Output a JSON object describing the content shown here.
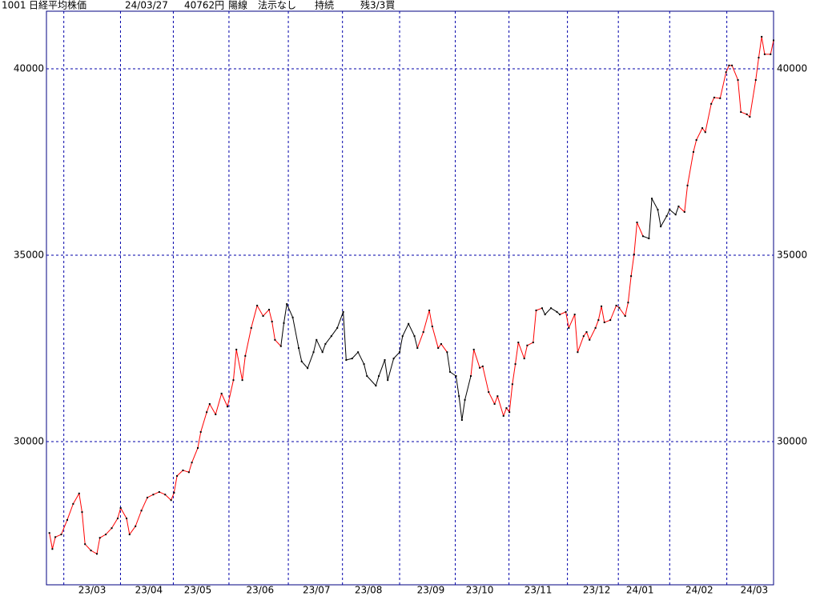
{
  "chart_data": {
    "type": "line",
    "header": [
      "1001",
      "日経平均株価",
      "24/03/27",
      "40762円",
      "陽線",
      "法示なし",
      "持続",
      "残3/3買"
    ],
    "x": [
      1,
      2,
      3,
      5,
      7,
      9,
      11,
      12,
      13,
      15,
      17,
      18,
      20,
      22,
      24,
      25,
      27,
      28,
      30,
      32,
      34,
      36,
      38,
      40,
      42,
      43,
      44,
      46,
      48,
      49,
      51,
      52,
      54,
      55,
      57,
      59,
      61,
      63,
      64,
      66,
      67,
      69,
      71,
      73,
      75,
      76,
      77,
      79,
      80,
      81,
      83,
      85,
      86,
      88,
      90,
      91,
      93,
      94,
      96,
      98,
      100,
      101,
      103,
      105,
      107,
      108,
      111,
      112,
      114,
      115,
      117,
      119,
      120,
      122,
      124,
      125,
      127,
      129,
      130,
      132,
      133,
      135,
      136,
      138,
      139,
      140,
      141,
      143,
      144,
      146,
      147,
      149,
      151,
      152,
      154,
      155,
      156,
      157,
      158,
      159,
      161,
      162,
      164,
      165,
      167,
      168,
      170,
      172,
      173,
      175,
      176,
      178,
      179,
      181,
      182,
      183,
      185,
      186,
      187,
      188,
      190,
      192,
      193,
      195,
      196,
      197,
      198,
      199,
      201,
      203,
      204,
      206,
      207,
      209,
      210,
      212,
      213,
      215,
      216,
      218,
      219,
      221,
      222,
      224,
      225,
      227,
      229,
      230,
      231,
      233,
      234,
      236,
      237,
      239,
      240,
      241,
      242,
      244,
      245
    ],
    "values": [
      27550,
      27120,
      27440,
      27510,
      27900,
      28330,
      28610,
      28110,
      27250,
      27080,
      26990,
      27420,
      27510,
      27680,
      27940,
      28220,
      27940,
      27510,
      27730,
      28150,
      28500,
      28580,
      28650,
      28580,
      28430,
      28630,
      29080,
      29230,
      29180,
      29440,
      29830,
      30260,
      30790,
      31010,
      30730,
      31290,
      30940,
      31650,
      32470,
      31650,
      32300,
      33050,
      33650,
      33370,
      33540,
      33220,
      32730,
      32560,
      33180,
      33690,
      33330,
      32510,
      32150,
      31970,
      32400,
      32730,
      32400,
      32620,
      32830,
      33050,
      33480,
      32190,
      32230,
      32400,
      32080,
      31760,
      31500,
      31760,
      32190,
      31650,
      32230,
      32400,
      32830,
      33160,
      32830,
      32510,
      32940,
      33520,
      33090,
      32510,
      32620,
      32400,
      31870,
      31760,
      31220,
      30580,
      31120,
      31760,
      32470,
      31980,
      32020,
      31330,
      31010,
      31220,
      30690,
      30900,
      30790,
      31540,
      32080,
      32660,
      32230,
      32580,
      32660,
      33520,
      33580,
      33410,
      33580,
      33480,
      33410,
      33480,
      33050,
      33410,
      32400,
      32830,
      32940,
      32730,
      33050,
      33260,
      33630,
      33200,
      33260,
      33650,
      33590,
      33370,
      33730,
      34440,
      35020,
      35880,
      35510,
      35450,
      36520,
      36220,
      35770,
      36050,
      36220,
      36090,
      36310,
      36160,
      36870,
      37770,
      38090,
      38410,
      38300,
      39060,
      39230,
      39210,
      39910,
      40090,
      40090,
      39700,
      38840,
      38780,
      38710,
      39700,
      40300,
      40860,
      40390,
      40390,
      40762
    ],
    "segment_colors": [
      "#ff0000",
      "#ff0000",
      "#ff0000",
      "#ff0000",
      "#ff0000",
      "#ff0000",
      "#ff0000",
      "#ff0000",
      "#ff0000",
      "#ff0000",
      "#ff0000",
      "#ff0000",
      "#ff0000",
      "#ff0000",
      "#ff0000",
      "#ff0000",
      "#ff0000",
      "#ff0000",
      "#ff0000",
      "#ff0000",
      "#ff0000",
      "#ff0000",
      "#ff0000",
      "#ff0000",
      "#ff0000",
      "#ff0000",
      "#ff0000",
      "#ff0000",
      "#ff0000",
      "#ff0000",
      "#ff0000",
      "#ff0000",
      "#ff0000",
      "#ff0000",
      "#ff0000",
      "#ff0000",
      "#ff0000",
      "#ff0000",
      "#ff0000",
      "#ff0000",
      "#ff0000",
      "#ff0000",
      "#ff0000",
      "#ff0000",
      "#ff0000",
      "#ff0000",
      "#ff0000",
      "#ff0000",
      "#000000",
      "#000000",
      "#000000",
      "#000000",
      "#000000",
      "#000000",
      "#000000",
      "#000000",
      "#000000",
      "#000000",
      "#000000",
      "#000000",
      "#000000",
      "#000000",
      "#000000",
      "#000000",
      "#000000",
      "#000000",
      "#000000",
      "#000000",
      "#000000",
      "#000000",
      "#000000",
      "#000000",
      "#000000",
      "#000000",
      "#000000",
      "#000000",
      "#ff0000",
      "#ff0000",
      "#ff0000",
      "#ff0000",
      "#ff0000",
      "#ff0000",
      "#000000",
      "#000000",
      "#000000",
      "#000000",
      "#000000",
      "#000000",
      "#ff0000",
      "#ff0000",
      "#ff0000",
      "#ff0000",
      "#ff0000",
      "#ff0000",
      "#ff0000",
      "#ff0000",
      "#ff0000",
      "#ff0000",
      "#ff0000",
      "#ff0000",
      "#ff0000",
      "#ff0000",
      "#ff0000",
      "#ff0000",
      "#ff0000",
      "#000000",
      "#000000",
      "#000000",
      "#000000",
      "#ff0000",
      "#ff0000",
      "#ff0000",
      "#ff0000",
      "#ff0000",
      "#ff0000",
      "#ff0000",
      "#ff0000",
      "#ff0000",
      "#ff0000",
      "#ff0000",
      "#ff0000",
      "#ff0000",
      "#ff0000",
      "#ff0000",
      "#ff0000",
      "#ff0000",
      "#ff0000",
      "#ff0000",
      "#ff0000",
      "#000000",
      "#000000",
      "#000000",
      "#000000",
      "#000000",
      "#000000",
      "#000000",
      "#000000",
      "#ff0000",
      "#ff0000",
      "#ff0000",
      "#ff0000",
      "#ff0000",
      "#ff0000",
      "#ff0000",
      "#ff0000",
      "#ff0000",
      "#ff0000",
      "#ff0000",
      "#ff0000",
      "#ff0000",
      "#ff0000",
      "#ff0000",
      "#ff0000",
      "#ff0000",
      "#ff0000",
      "#ff0000",
      "#ff0000",
      "#ff0000",
      "#ff0000"
    ],
    "point_color": "#000000",
    "xlim": [
      0,
      245
    ],
    "xticks": [
      {
        "value": 15.4,
        "label": "23/03"
      },
      {
        "value": 34.5,
        "label": "23/04"
      },
      {
        "value": 51,
        "label": "23/05"
      },
      {
        "value": 72,
        "label": "23/06"
      },
      {
        "value": 91,
        "label": "23/07"
      },
      {
        "value": 108.5,
        "label": "23/08"
      },
      {
        "value": 129.5,
        "label": "23/09"
      },
      {
        "value": 146,
        "label": "23/10"
      },
      {
        "value": 165.7,
        "label": "23/11"
      },
      {
        "value": 185.4,
        "label": "23/12"
      },
      {
        "value": 200,
        "label": "24/01"
      },
      {
        "value": 220,
        "label": "24/02"
      },
      {
        "value": 238.5,
        "label": "24/03"
      }
    ],
    "ylim": [
      26160,
      41545
    ],
    "yticks": [
      30000,
      35000,
      40000
    ],
    "grid": true,
    "grid_color": "#0000aa",
    "frame_color": "#000080"
  }
}
